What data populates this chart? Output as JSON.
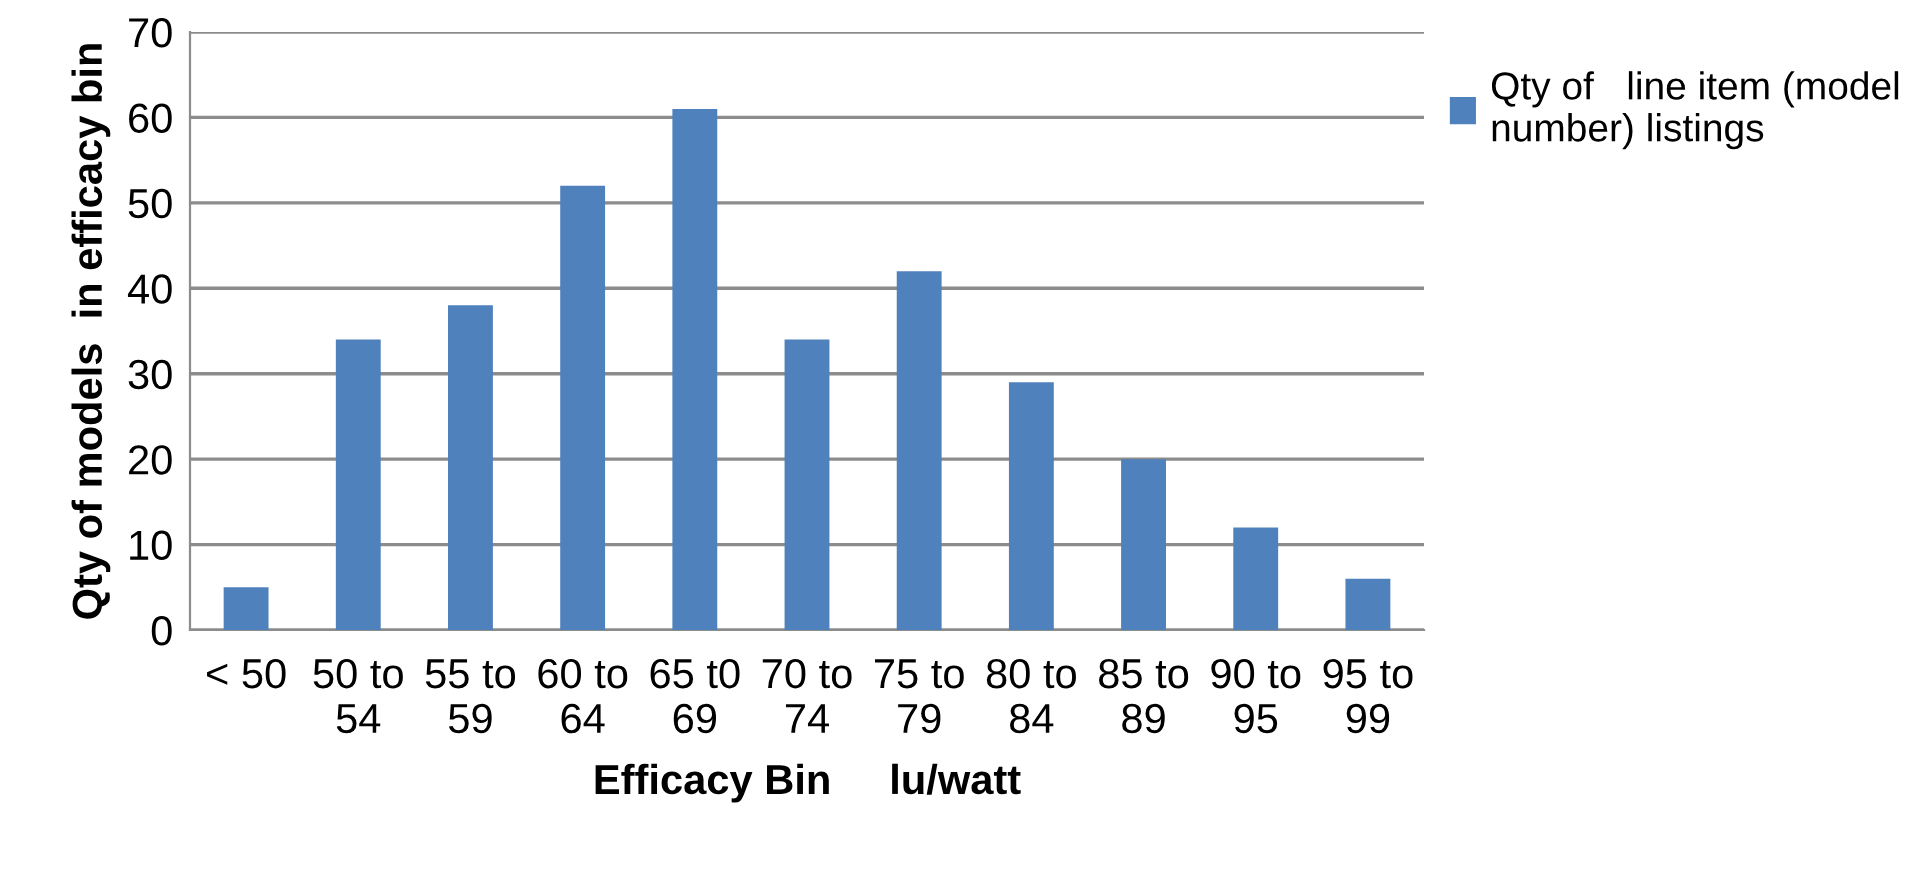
{
  "chart_data": {
    "type": "bar",
    "xlabel": "Efficacy Bin     lu/watt",
    "ylabel": "Qty of models  in efficacy bin",
    "categories": [
      "< 50",
      "50 to\n54",
      "55 to\n59",
      "60 to\n64",
      "65 t0\n69",
      "70 to\n74",
      "75 to\n79",
      "80 to\n84",
      "85 to\n89",
      "90 to\n95",
      "95 to\n99"
    ],
    "series": [
      {
        "name": "Qty of   line item (model\nnumber) listings",
        "color": "#4f81bd",
        "values": [
          5,
          34,
          38,
          52,
          61,
          34,
          42,
          29,
          20,
          12,
          6
        ]
      }
    ],
    "ylim": [
      0,
      70
    ],
    "yticks": [
      0,
      10,
      20,
      30,
      40,
      50,
      60,
      70
    ],
    "grid": "y",
    "legend": "top right"
  }
}
